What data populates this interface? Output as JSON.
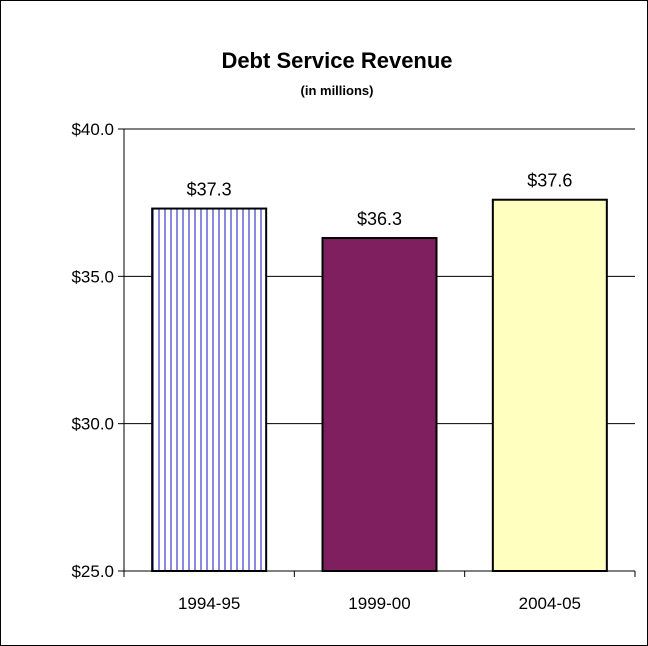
{
  "chart_data": {
    "type": "bar",
    "title": "Debt Service Revenue",
    "subtitle": "(in millions)",
    "categories": [
      "1994-95",
      "1999-00",
      "2004-05"
    ],
    "values": [
      37.3,
      36.3,
      37.6
    ],
    "data_labels": [
      "$37.3",
      "$36.3",
      "$37.6"
    ],
    "ylim": [
      25.0,
      40.0
    ],
    "yticks": [
      25.0,
      30.0,
      35.0,
      40.0
    ],
    "ytick_labels": [
      "$25.0",
      "$30.0",
      "$35.0",
      "$40.0"
    ],
    "xlabel": "",
    "ylabel": "",
    "grid": true,
    "legend": "none",
    "bar_styles": [
      {
        "fill": "#ffffff",
        "stripe": "#8a8ae0",
        "pattern": "vertical-stripes"
      },
      {
        "fill": "#7f1f5f",
        "pattern": "solid"
      },
      {
        "fill": "#ffffc0",
        "pattern": "solid"
      }
    ]
  }
}
